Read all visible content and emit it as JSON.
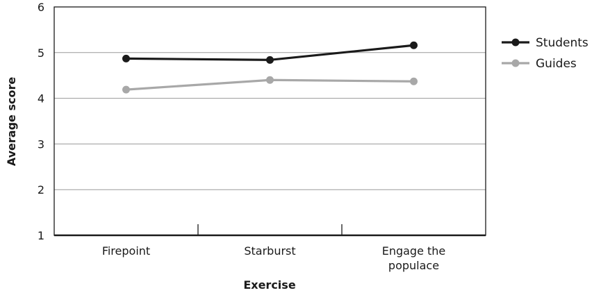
{
  "chart_data": {
    "type": "line",
    "title": "",
    "xlabel": "Exercise",
    "ylabel": "Average score",
    "categories": [
      [
        "Firepoint"
      ],
      [
        "Starburst"
      ],
      [
        "Engage the",
        "populace"
      ]
    ],
    "ylim": [
      1,
      6
    ],
    "yticks": [
      1,
      2,
      3,
      4,
      5,
      6
    ],
    "grid": true,
    "legend_position": "right",
    "series": [
      {
        "name": "Students",
        "values": [
          4.87,
          4.84,
          5.16
        ],
        "color": "#1a1a1a"
      },
      {
        "name": "Guides",
        "values": [
          4.19,
          4.4,
          4.37
        ],
        "color": "#a8a8a8"
      }
    ]
  }
}
